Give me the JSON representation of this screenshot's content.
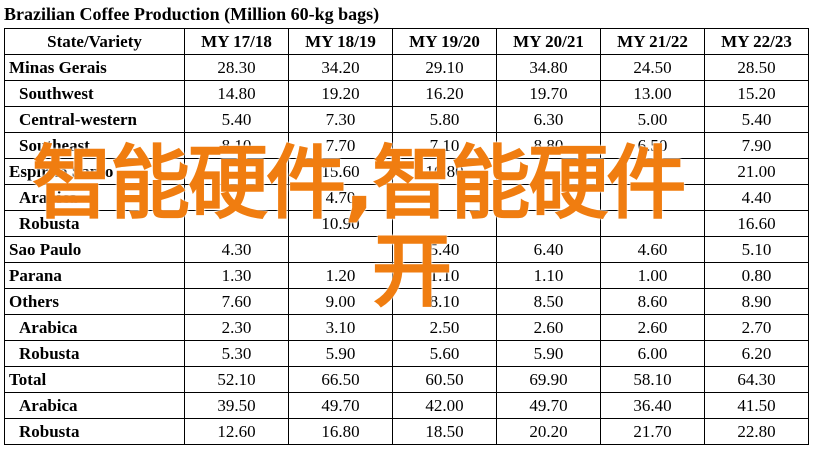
{
  "title": "Brazilian Coffee Production (Million 60-kg bags)",
  "header": [
    "State/Variety",
    "MY 17/18",
    "MY 18/19",
    "MY 19/20",
    "MY 20/21",
    "MY 21/22",
    "MY 22/23"
  ],
  "rows": [
    {
      "label": "Minas Gerais",
      "indent": false,
      "values": [
        "28.30",
        "34.20",
        "29.10",
        "34.80",
        "24.50",
        "28.50"
      ]
    },
    {
      "label": "Southwest",
      "indent": true,
      "values": [
        "14.80",
        "19.20",
        "16.20",
        "19.70",
        "13.00",
        "15.20"
      ]
    },
    {
      "label": "Central-western",
      "indent": true,
      "values": [
        "5.40",
        "7.30",
        "5.80",
        "6.30",
        "5.00",
        "5.40"
      ]
    },
    {
      "label": "Southeast",
      "indent": true,
      "values": [
        "8.10",
        "7.70",
        "7.10",
        "8.80",
        "6.50",
        "7.90"
      ]
    },
    {
      "label": "Espirito Santo",
      "indent": false,
      "values": [
        "",
        "15.60",
        "16.80",
        "",
        "",
        "21.00"
      ]
    },
    {
      "label": "Arabica",
      "indent": true,
      "values": [
        "",
        "4.70",
        "",
        "",
        "",
        "4.40"
      ]
    },
    {
      "label": "Robusta",
      "indent": true,
      "values": [
        "",
        "10.90",
        "",
        "",
        "",
        "16.60"
      ]
    },
    {
      "label": "Sao Paulo",
      "indent": false,
      "values": [
        "4.30",
        "",
        "5.40",
        "6.40",
        "4.60",
        "5.10"
      ]
    },
    {
      "label": "Parana",
      "indent": false,
      "values": [
        "1.30",
        "1.20",
        "1.10",
        "1.10",
        "1.00",
        "0.80"
      ]
    },
    {
      "label": "Others",
      "indent": false,
      "values": [
        "7.60",
        "9.00",
        "8.10",
        "8.50",
        "8.60",
        "8.90"
      ]
    },
    {
      "label": "Arabica",
      "indent": true,
      "values": [
        "2.30",
        "3.10",
        "2.50",
        "2.60",
        "2.60",
        "2.70"
      ]
    },
    {
      "label": "Robusta",
      "indent": true,
      "values": [
        "5.30",
        "5.90",
        "5.60",
        "5.90",
        "6.00",
        "6.20"
      ]
    },
    {
      "label": "Total",
      "indent": false,
      "values": [
        "52.10",
        "66.50",
        "60.50",
        "69.90",
        "58.10",
        "64.30"
      ]
    },
    {
      "label": "Arabica",
      "indent": true,
      "values": [
        "39.50",
        "49.70",
        "42.00",
        "49.70",
        "36.40",
        "41.50"
      ]
    },
    {
      "label": "Robusta",
      "indent": true,
      "values": [
        "12.60",
        "16.80",
        "18.50",
        "20.20",
        "21.70",
        "22.80"
      ]
    }
  ],
  "overlay": {
    "line1": "智能硬件,智能硬件",
    "line2": "开",
    "color": "#f07d10"
  }
}
